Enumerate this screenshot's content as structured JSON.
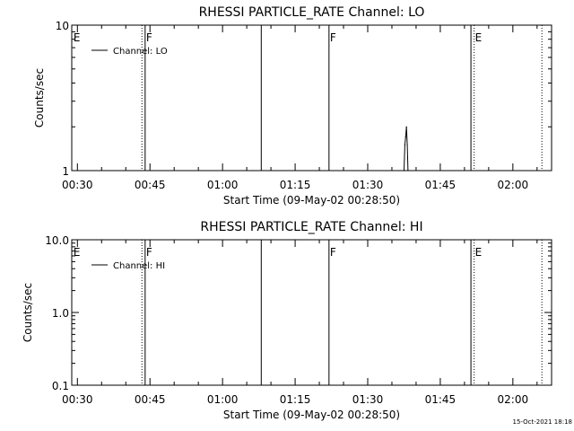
{
  "footer_timestamp": "15-Oct-2021 18:18",
  "chart_data": [
    {
      "type": "line",
      "title": "RHESSI PARTICLE_RATE Channel: LO",
      "xlabel": "Start Time (09-May-02 00:28:50)",
      "ylabel": "Counts/sec",
      "xlim": [
        "00:28:50",
        "02:08:00"
      ],
      "x_ticks": [
        "00:30",
        "00:45",
        "01:00",
        "01:15",
        "01:30",
        "01:45",
        "02:00"
      ],
      "y_scale": "log",
      "ylim": [
        1,
        10
      ],
      "y_ticks": [
        "1",
        "10"
      ],
      "legend": {
        "placement": "top-left",
        "entries": [
          "Channel: LO"
        ]
      },
      "series": [
        {
          "name": "Channel: LO",
          "points": [
            {
              "time": "01:37:30",
              "value": 1
            },
            {
              "time": "01:37:40",
              "value": 1.5
            },
            {
              "time": "01:37:50",
              "value": 1.7
            },
            {
              "time": "01:38:00",
              "value": 2.0
            },
            {
              "time": "01:38:10",
              "value": 1.5
            },
            {
              "time": "01:38:20",
              "value": 1
            }
          ]
        }
      ],
      "flags": [
        {
          "time": "00:43:20",
          "style": "dotted"
        },
        {
          "time": "00:44:00",
          "style": "solid"
        },
        {
          "time": "01:08:00",
          "style": "solid"
        },
        {
          "time": "01:22:00",
          "style": "solid"
        },
        {
          "time": "01:51:20",
          "style": "solid"
        },
        {
          "time": "01:52:00",
          "style": "dotted"
        },
        {
          "time": "02:06:00",
          "style": "dotted"
        }
      ],
      "markers": [
        {
          "time": "00:29:00",
          "label": "E"
        },
        {
          "time": "00:44:00",
          "label": "F"
        },
        {
          "time": "01:22:00",
          "label": "F"
        },
        {
          "time": "01:52:00",
          "label": "E"
        }
      ]
    },
    {
      "type": "line",
      "title": "RHESSI PARTICLE_RATE Channel: HI",
      "xlabel": "Start Time (09-May-02 00:28:50)",
      "ylabel": "Counts/sec",
      "xlim": [
        "00:28:50",
        "02:08:00"
      ],
      "x_ticks": [
        "00:30",
        "00:45",
        "01:00",
        "01:15",
        "01:30",
        "01:45",
        "02:00"
      ],
      "y_scale": "log",
      "ylim": [
        0.1,
        10
      ],
      "y_ticks": [
        "0.1",
        "1.0",
        "10.0"
      ],
      "legend": {
        "placement": "top-left",
        "entries": [
          "Channel: HI"
        ]
      },
      "series": [
        {
          "name": "Channel: HI",
          "points": []
        }
      ],
      "flags": [
        {
          "time": "00:43:20",
          "style": "dotted"
        },
        {
          "time": "00:44:00",
          "style": "solid"
        },
        {
          "time": "01:08:00",
          "style": "solid"
        },
        {
          "time": "01:22:00",
          "style": "solid"
        },
        {
          "time": "01:51:20",
          "style": "solid"
        },
        {
          "time": "01:52:00",
          "style": "dotted"
        },
        {
          "time": "02:06:00",
          "style": "dotted"
        }
      ],
      "markers": [
        {
          "time": "00:29:00",
          "label": "E"
        },
        {
          "time": "00:44:00",
          "label": "F"
        },
        {
          "time": "01:22:00",
          "label": "F"
        },
        {
          "time": "01:52:00",
          "label": "E"
        }
      ]
    }
  ]
}
